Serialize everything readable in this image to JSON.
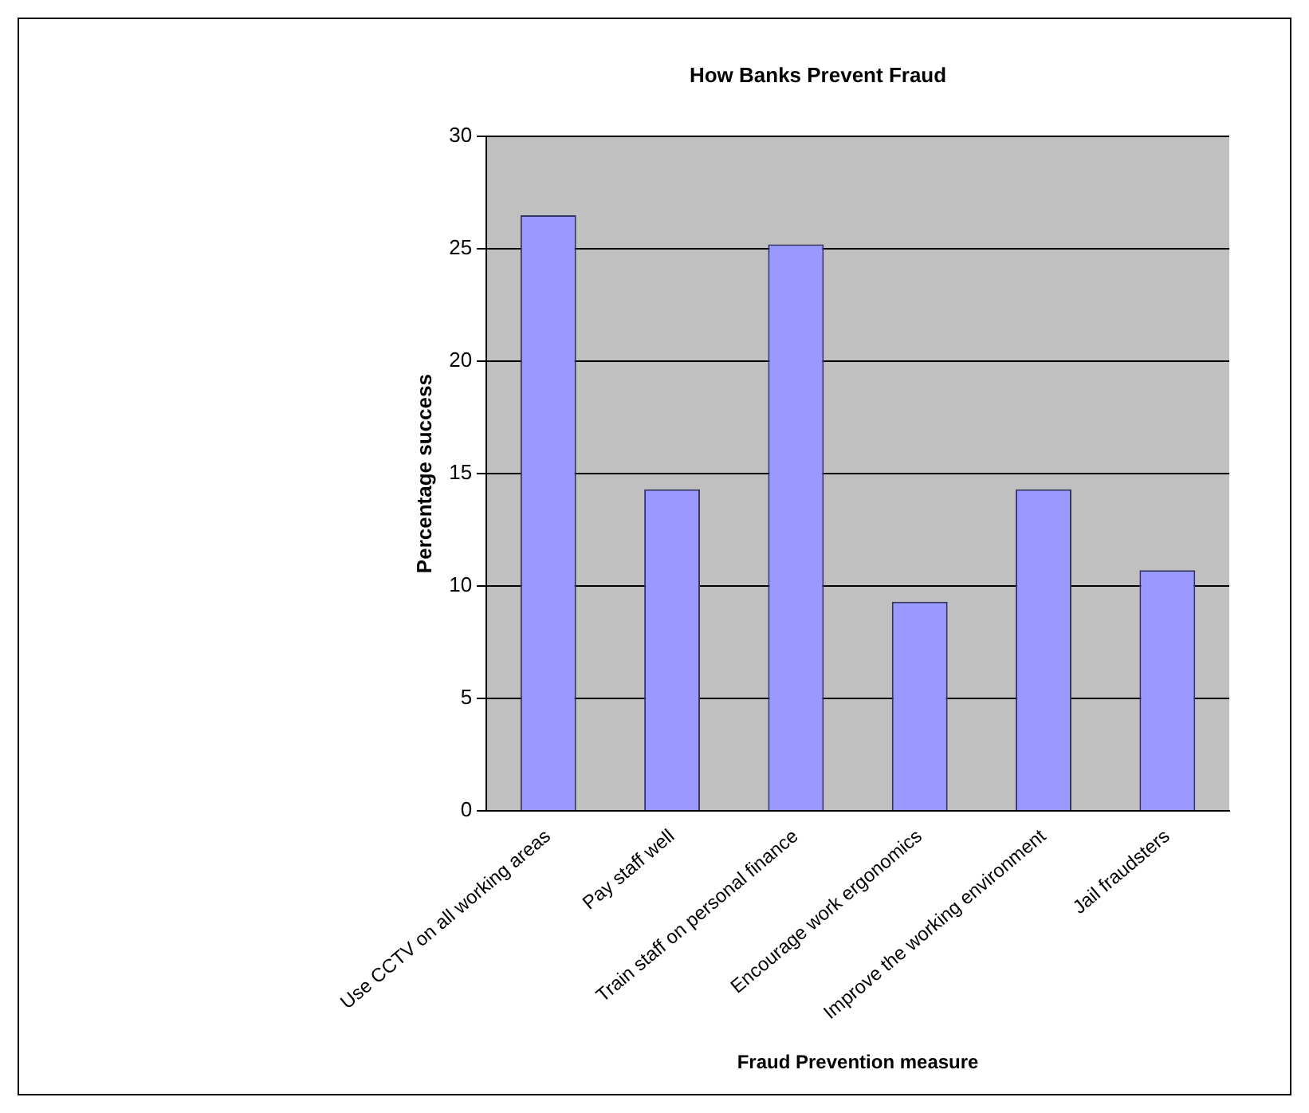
{
  "chart_data": {
    "type": "bar",
    "title": "How Banks Prevent Fraud",
    "xlabel": "Fraud Prevention measure",
    "ylabel": "Percentage success",
    "categories": [
      "Use CCTV on all working areas",
      "Pay staff well",
      "Train staff on personal finance",
      "Encourage work ergonomics",
      "Improve the working environment",
      "Jail fraudsters"
    ],
    "values": [
      26.5,
      14.3,
      25.2,
      9.3,
      14.3,
      10.7
    ],
    "color": "#9999ff",
    "ylim": [
      0,
      30
    ],
    "yticks": [
      0,
      5,
      10,
      15,
      20,
      25,
      30
    ],
    "grid": "y",
    "legend": false
  }
}
